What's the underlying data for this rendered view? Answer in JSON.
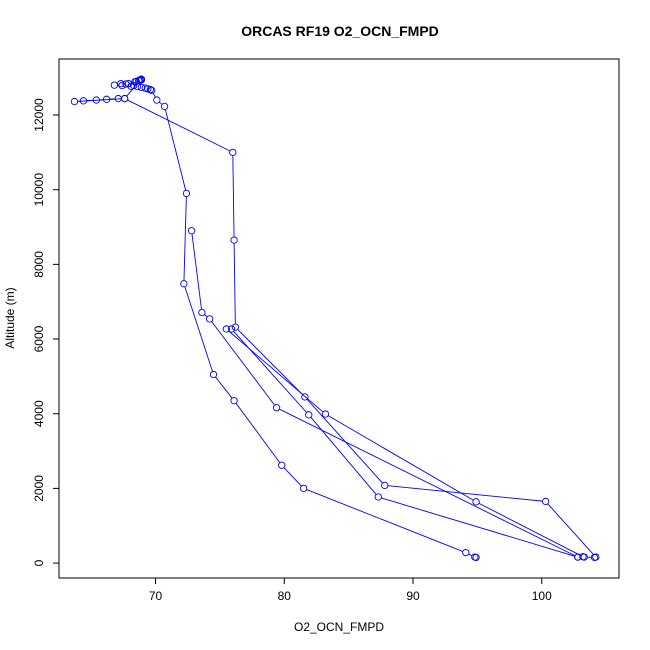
{
  "chart_data": {
    "type": "scatter",
    "title": "ORCAS RF19 O2_OCN_FMPD",
    "xlabel": "O2_OCN_FMPD",
    "ylabel": "Altitude (m)",
    "xlim": [
      62.5,
      106
    ],
    "ylim": [
      -400,
      13500
    ],
    "xticks": [
      70,
      80,
      90,
      100
    ],
    "yticks": [
      0,
      2000,
      4000,
      6000,
      8000,
      10000,
      12000
    ],
    "grid": false,
    "legend": "none",
    "marker": "open-circle",
    "connected": true,
    "color": "#0000ff",
    "series": [
      {
        "points": [
          [
            94.9,
            150
          ],
          [
            94.8,
            160
          ],
          [
            94.1,
            280
          ],
          [
            81.5,
            2000
          ],
          [
            79.8,
            2620
          ],
          [
            76.1,
            4350
          ],
          [
            74.5,
            5050
          ],
          [
            72.2,
            7480
          ],
          [
            72.4,
            9900
          ],
          [
            70.7,
            12230
          ],
          [
            70.1,
            12400
          ],
          [
            69.7,
            12660
          ],
          [
            69.6,
            12680
          ],
          [
            69.4,
            12700
          ],
          [
            69.2,
            12720
          ],
          [
            68.9,
            12740
          ],
          [
            68.6,
            12760
          ],
          [
            68.3,
            12790
          ],
          [
            68.1,
            12770
          ],
          [
            67.7,
            12830
          ],
          [
            67.3,
            12840
          ],
          [
            66.8,
            12800
          ],
          [
            67.4,
            12790
          ],
          [
            67.9,
            12840
          ],
          [
            68.4,
            12890
          ],
          [
            68.7,
            12920
          ],
          [
            68.8,
            12940
          ],
          [
            68.9,
            12960
          ],
          [
            68.9,
            12940
          ],
          [
            68.7,
            12920
          ],
          [
            68.5,
            12900
          ],
          [
            68.8,
            12930
          ],
          [
            67.6,
            12440
          ],
          [
            67.1,
            12440
          ],
          [
            66.2,
            12420
          ],
          [
            65.4,
            12400
          ],
          [
            64.4,
            12380
          ],
          [
            63.7,
            12360
          ],
          [
            67.6,
            12440
          ],
          [
            76.0,
            11000
          ],
          [
            76.1,
            8650
          ],
          [
            76.2,
            6320
          ],
          [
            81.6,
            4450
          ],
          [
            87.8,
            2080
          ],
          [
            100.3,
            1650
          ],
          [
            104.2,
            160
          ],
          [
            104.1,
            150
          ],
          [
            103.3,
            160
          ],
          [
            102.8,
            160
          ],
          [
            87.3,
            1770
          ],
          [
            81.9,
            3970
          ],
          [
            75.9,
            6270
          ],
          [
            75.5,
            6270
          ],
          [
            83.2,
            3990
          ],
          [
            94.9,
            1640
          ],
          [
            103.2,
            170
          ],
          [
            102.8,
            160
          ],
          [
            79.4,
            4160
          ],
          [
            74.2,
            6540
          ],
          [
            73.6,
            6710
          ],
          [
            72.8,
            8900
          ]
        ]
      }
    ]
  }
}
